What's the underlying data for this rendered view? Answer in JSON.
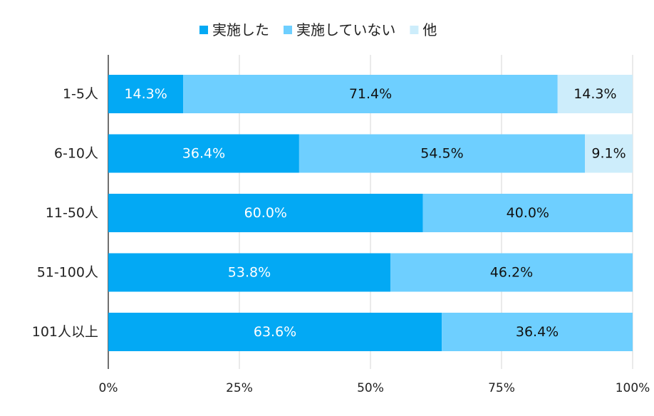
{
  "chart_data": {
    "type": "bar",
    "orientation": "horizontal",
    "stacked": "percent",
    "title": "",
    "xlabel": "",
    "ylabel": "",
    "xlim": [
      0,
      100
    ],
    "grid": true,
    "legend_position": "top-center",
    "categories": [
      "1-5人",
      "6-10人",
      "11-50人",
      "51-100人",
      "101人以上"
    ],
    "series": [
      {
        "name": "実施した",
        "color": "#03A9F4",
        "label_color": "#FFFFFF",
        "values": [
          14.3,
          36.4,
          60.0,
          53.8,
          63.6
        ],
        "labels": [
          "14.3%",
          "36.4%",
          "60.0%",
          "53.8%",
          "63.6%"
        ]
      },
      {
        "name": "実施していない",
        "color": "#6ECFFF",
        "label_color": "#111111",
        "values": [
          71.4,
          54.5,
          40.0,
          46.2,
          36.4
        ],
        "labels": [
          "71.4%",
          "54.5%",
          "40.0%",
          "46.2%",
          "36.4%"
        ]
      },
      {
        "name": "他",
        "color": "#CDEDFB",
        "label_color": "#111111",
        "values": [
          14.3,
          9.1,
          0,
          0,
          0
        ],
        "labels": [
          "14.3%",
          "9.1%",
          "",
          "",
          ""
        ]
      }
    ],
    "x_ticks": [
      0,
      25,
      50,
      75,
      100
    ],
    "x_tick_labels": [
      "0%",
      "25%",
      "50%",
      "75%",
      "100%"
    ]
  }
}
